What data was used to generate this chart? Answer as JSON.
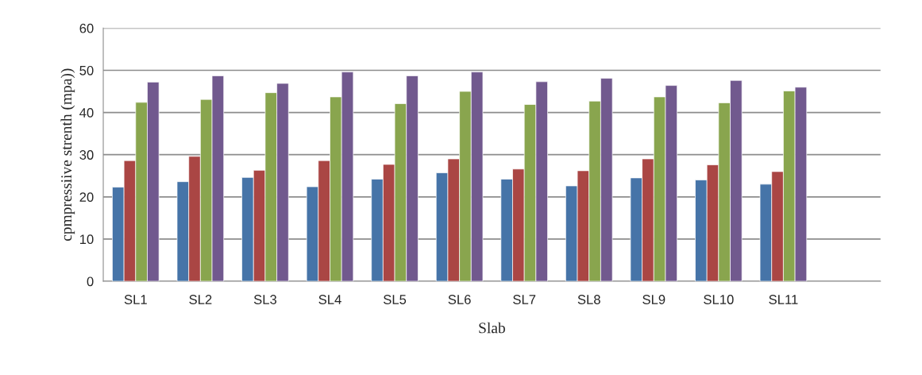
{
  "chart_data": {
    "type": "bar",
    "xlabel": "Slab",
    "ylabel": "cpmpressiive strenth (mpa))",
    "categories": [
      "SL1",
      "SL2",
      "SL3",
      "SL4",
      "SL5",
      "SL6",
      "SL7",
      "SL8",
      "SL9",
      "SL10",
      "SL11",
      null
    ],
    "series": [
      {
        "color": "#4674a8",
        "values": [
          22.3,
          23.6,
          24.6,
          22.4,
          24.2,
          25.7,
          24.2,
          22.6,
          24.5,
          24.0,
          23.0,
          null
        ]
      },
      {
        "color": "#aa4644",
        "values": [
          28.6,
          29.6,
          26.3,
          28.6,
          27.7,
          29.0,
          26.6,
          26.2,
          29.0,
          27.6,
          26.0,
          null
        ]
      },
      {
        "color": "#89a54e",
        "values": [
          42.4,
          43.1,
          44.7,
          43.7,
          42.1,
          45.0,
          41.9,
          42.7,
          43.7,
          42.3,
          45.1,
          null
        ]
      },
      {
        "color": "#71598e",
        "values": [
          47.2,
          48.7,
          46.9,
          49.6,
          48.7,
          49.6,
          47.3,
          48.1,
          46.4,
          47.6,
          46.0,
          null
        ]
      }
    ],
    "ylim": [
      0,
      60
    ],
    "yticks": [
      0,
      10,
      20,
      30,
      40,
      50,
      60
    ],
    "grid": "y",
    "legend": false
  }
}
